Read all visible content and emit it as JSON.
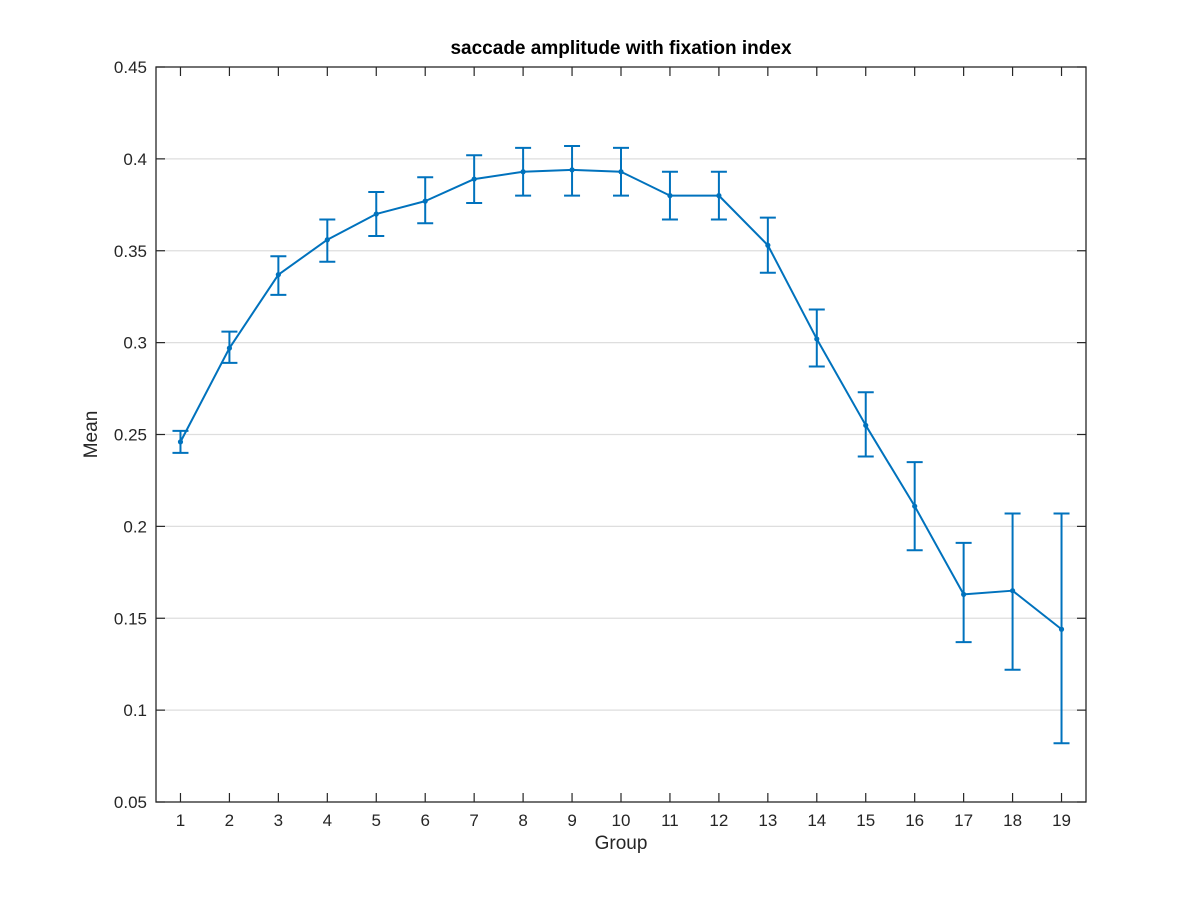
{
  "chart_data": {
    "type": "line",
    "title": "saccade amplitude with fixation index",
    "xlabel": "Group",
    "ylabel": "Mean",
    "xlim": [
      0.5,
      19.5
    ],
    "ylim": [
      0.05,
      0.45
    ],
    "grid": "y-major",
    "x": [
      1,
      2,
      3,
      4,
      5,
      6,
      7,
      8,
      9,
      10,
      11,
      12,
      13,
      14,
      15,
      16,
      17,
      18,
      19
    ],
    "x_tick_labels": [
      "1",
      "2",
      "3",
      "4",
      "5",
      "6",
      "7",
      "8",
      "9",
      "10",
      "11",
      "12",
      "13",
      "14",
      "15",
      "16",
      "17",
      "18",
      "19"
    ],
    "y_ticks": [
      0.05,
      0.1,
      0.15,
      0.2,
      0.25,
      0.3,
      0.35,
      0.4,
      0.45
    ],
    "y_tick_labels": [
      "0.05",
      "0.1",
      "0.15",
      "0.2",
      "0.25",
      "0.3",
      "0.35",
      "0.4",
      "0.45"
    ],
    "series": [
      {
        "name": "Mean",
        "color": "#0072bd",
        "values": [
          0.246,
          0.297,
          0.337,
          0.356,
          0.37,
          0.377,
          0.389,
          0.393,
          0.394,
          0.393,
          0.38,
          0.38,
          0.353,
          0.302,
          0.255,
          0.211,
          0.163,
          0.165,
          0.144
        ],
        "lower": [
          0.24,
          0.289,
          0.326,
          0.344,
          0.358,
          0.365,
          0.376,
          0.38,
          0.38,
          0.38,
          0.367,
          0.367,
          0.338,
          0.287,
          0.238,
          0.187,
          0.137,
          0.122,
          0.082
        ],
        "upper": [
          0.252,
          0.306,
          0.347,
          0.367,
          0.382,
          0.39,
          0.402,
          0.406,
          0.407,
          0.406,
          0.393,
          0.393,
          0.368,
          0.318,
          0.273,
          0.235,
          0.191,
          0.207,
          0.207
        ]
      }
    ]
  }
}
